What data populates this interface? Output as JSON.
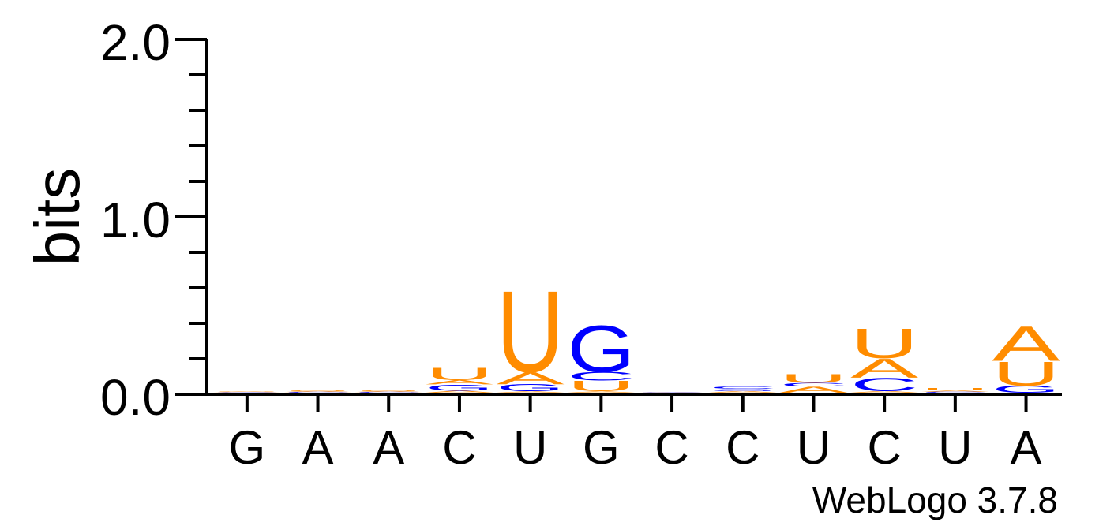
{
  "chart_data": {
    "type": "sequence-logo",
    "ylabel": "bits",
    "ylim": [
      0,
      2.0
    ],
    "y_ticks": [
      "0.0",
      "1.0",
      "2.0"
    ],
    "minor_tick_step": 0.2,
    "x_labels": [
      "G",
      "A",
      "A",
      "C",
      "U",
      "G",
      "C",
      "C",
      "U",
      "C",
      "U",
      "A"
    ],
    "footer": "WebLogo 3.7.8",
    "colors": {
      "A": "#ff8c00",
      "U": "#ff8c00",
      "G": "#0000ff",
      "C": "#0000ff"
    },
    "stacks": [
      [
        {
          "letter": "C",
          "bits": 0.003
        },
        {
          "letter": "A",
          "bits": 0.003
        },
        {
          "letter": "U",
          "bits": 0.003
        }
      ],
      [
        {
          "letter": "C",
          "bits": 0.004
        },
        {
          "letter": "A",
          "bits": 0.006
        },
        {
          "letter": "U",
          "bits": 0.008
        }
      ],
      [
        {
          "letter": "C",
          "bits": 0.004
        },
        {
          "letter": "A",
          "bits": 0.006
        },
        {
          "letter": "U",
          "bits": 0.008
        }
      ],
      [
        {
          "letter": "A",
          "bits": 0.012
        },
        {
          "letter": "G",
          "bits": 0.035
        },
        {
          "letter": "A",
          "bits": 0.025
        },
        {
          "letter": "U",
          "bits": 0.07
        }
      ],
      [
        {
          "letter": "A",
          "bits": 0.008
        },
        {
          "letter": "G",
          "bits": 0.04
        },
        {
          "letter": "A",
          "bits": 0.07
        },
        {
          "letter": "U",
          "bits": 0.47
        }
      ],
      [
        {
          "letter": "A",
          "bits": 0.008
        },
        {
          "letter": "U",
          "bits": 0.06
        },
        {
          "letter": "C",
          "bits": 0.05
        },
        {
          "letter": "G",
          "bits": 0.27
        }
      ],
      [
        {
          "letter": "C",
          "bits": 0.002
        },
        {
          "letter": "A",
          "bits": 0.002
        }
      ],
      [
        {
          "letter": "A",
          "bits": 0.01
        },
        {
          "letter": "G",
          "bits": 0.012
        },
        {
          "letter": "C",
          "bits": 0.015
        }
      ],
      [
        {
          "letter": "A",
          "bits": 0.035
        },
        {
          "letter": "C",
          "bits": 0.02
        },
        {
          "letter": "U",
          "bits": 0.05
        }
      ],
      [
        {
          "letter": "A",
          "bits": 0.01
        },
        {
          "letter": "C",
          "bits": 0.075
        },
        {
          "letter": "A",
          "bits": 0.11
        },
        {
          "letter": "U",
          "bits": 0.17
        }
      ],
      [
        {
          "letter": "C",
          "bits": 0.005
        },
        {
          "letter": "A",
          "bits": 0.008
        },
        {
          "letter": "U",
          "bits": 0.015
        }
      ],
      [
        {
          "letter": "G",
          "bits": 0.04
        },
        {
          "letter": "U",
          "bits": 0.14
        },
        {
          "letter": "A",
          "bits": 0.2
        }
      ]
    ]
  }
}
